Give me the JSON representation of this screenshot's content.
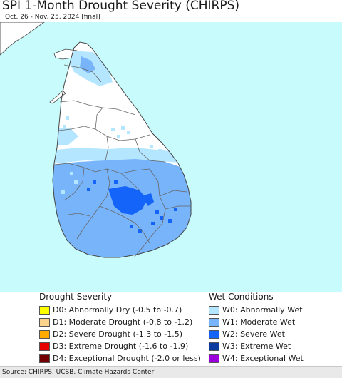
{
  "title": "SPI 1-Month Drought Severity (CHIRPS)",
  "subtitle": "Oct. 26 - Nov. 25, 2024 [final]",
  "colors": {
    "sea": "#c8fcfc",
    "land": "#ffffff",
    "border": "#555555",
    "w0": "#b4e6ff",
    "w1": "#78b4fa",
    "w2": "#1464fa",
    "w3": "#0a3ca0",
    "w4": "#9b00dc"
  },
  "drought_legend": {
    "heading": "Drought Severity",
    "items": [
      {
        "label": "D0: Abnormally Dry (-0.5 to -0.7)",
        "color": "#ffff00"
      },
      {
        "label": "D1: Moderate Drought (-0.8 to -1.2)",
        "color": "#fcd38a"
      },
      {
        "label": "D2: Severe Drought (-1.3 to -1.5)",
        "color": "#ffaa00"
      },
      {
        "label": "D3: Extreme Drought (-1.6 to -1.9)",
        "color": "#e60000"
      },
      {
        "label": "D4: Exceptional Drought (-2.0 or less)",
        "color": "#730000"
      }
    ]
  },
  "wet_legend": {
    "heading": "Wet Conditions",
    "items": [
      {
        "label": "W0: Abnormally Wet",
        "color": "#b4e6ff"
      },
      {
        "label": "W1: Moderate Wet",
        "color": "#78b4fa"
      },
      {
        "label": "W2: Severe Wet",
        "color": "#1464fa"
      },
      {
        "label": "W3: Extreme Wet",
        "color": "#0a3ca0"
      },
      {
        "label": "W4: Exceptional Wet",
        "color": "#9b00dc"
      }
    ]
  },
  "footer": "Source: CHIRPS, UCSB, Climate Hazards Center"
}
